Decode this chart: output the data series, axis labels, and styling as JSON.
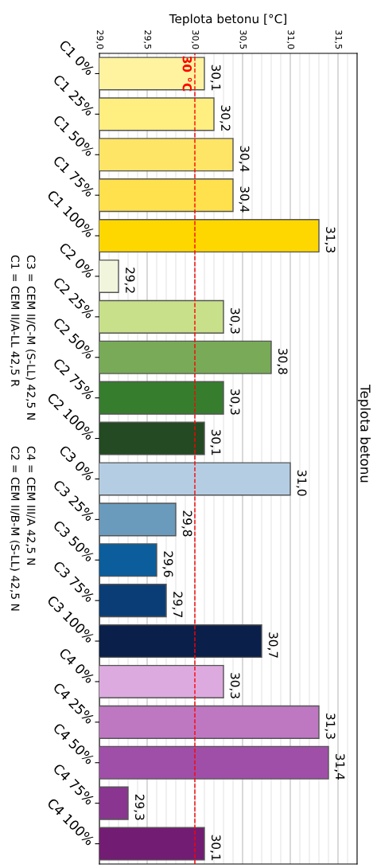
{
  "chart_data": {
    "type": "bar",
    "orientation": "horizontal",
    "title": "Teplota betonu",
    "xlabel": "Teplota betonu [°C]",
    "categories": [
      "C1 0%",
      "C1 25%",
      "C1 50%",
      "C1 75%",
      "C1 100%",
      "C2 0%",
      "C2 25%",
      "C2 50%",
      "C2 75%",
      "C2 100%",
      "C3 0%",
      "C3 25%",
      "C3 50%",
      "C3 75%",
      "C3 100%",
      "C4 0%",
      "C4 25%",
      "C4 50%",
      "C4 75%",
      "C4 100%"
    ],
    "values": [
      30.1,
      30.2,
      30.4,
      30.4,
      31.3,
      29.2,
      30.3,
      30.8,
      30.3,
      30.1,
      31.0,
      29.8,
      29.6,
      29.7,
      30.7,
      30.3,
      31.3,
      31.4,
      29.3,
      30.1
    ],
    "value_labels": [
      "30,1",
      "30,2",
      "30,4",
      "30,4",
      "31,3",
      "29,2",
      "30,3",
      "30,8",
      "30,3",
      "30,1",
      "31,0",
      "29,8",
      "29,6",
      "29,7",
      "30,7",
      "30,3",
      "31,3",
      "31,4",
      "29,3",
      "30,1"
    ],
    "colors": [
      "#fff3a0",
      "#ffee80",
      "#ffe566",
      "#ffe04d",
      "#ffd700",
      "#f0f5dc",
      "#c8e08a",
      "#78aa58",
      "#367d2e",
      "#234a22",
      "#b4cde3",
      "#6a9bbd",
      "#0b5e9b",
      "#0a3d75",
      "#0a1f4a",
      "#dcaadf",
      "#be78c2",
      "#a04fa8",
      "#8a3590",
      "#731c73"
    ],
    "xlim": [
      29.0,
      31.7
    ],
    "xticks": [
      {
        "value": 29.0,
        "label": "29,0"
      },
      {
        "value": 29.1,
        "label": null
      },
      {
        "value": 29.2,
        "label": null
      },
      {
        "value": 29.3,
        "label": null
      },
      {
        "value": 29.4,
        "label": null
      },
      {
        "value": 29.5,
        "label": "29,5"
      },
      {
        "value": 29.6,
        "label": null
      },
      {
        "value": 29.7,
        "label": null
      },
      {
        "value": 29.8,
        "label": null
      },
      {
        "value": 29.9,
        "label": null
      },
      {
        "value": 30.0,
        "label": "30,0"
      },
      {
        "value": 30.1,
        "label": null
      },
      {
        "value": 30.2,
        "label": null
      },
      {
        "value": 30.3,
        "label": null
      },
      {
        "value": 30.4,
        "label": null
      },
      {
        "value": 30.5,
        "label": "30,5"
      },
      {
        "value": 30.6,
        "label": null
      },
      {
        "value": 30.7,
        "label": null
      },
      {
        "value": 30.8,
        "label": null
      },
      {
        "value": 30.9,
        "label": null
      },
      {
        "value": 31.0,
        "label": "31,0"
      },
      {
        "value": 31.1,
        "label": null
      },
      {
        "value": 31.2,
        "label": null
      },
      {
        "value": 31.3,
        "label": null
      },
      {
        "value": 31.4,
        "label": null
      },
      {
        "value": 31.5,
        "label": "31,5"
      },
      {
        "value": 31.6,
        "label": null
      },
      {
        "value": 31.7,
        "label": null
      }
    ],
    "grid": "x",
    "ref_lines": [
      {
        "axis": "x",
        "value": 30.0,
        "label": "30 °C",
        "color": "#ff0000",
        "line_style": "dashed"
      }
    ],
    "annotations": [
      "C1 = CEM II/A-LL 42,5 R",
      "C3 = CEM II/C-M (S-LL) 42,5 N",
      "C2 = CEM II/B-M (S-LL) 42,5 N",
      "C4 = CEM III/A 42,5 N"
    ]
  }
}
